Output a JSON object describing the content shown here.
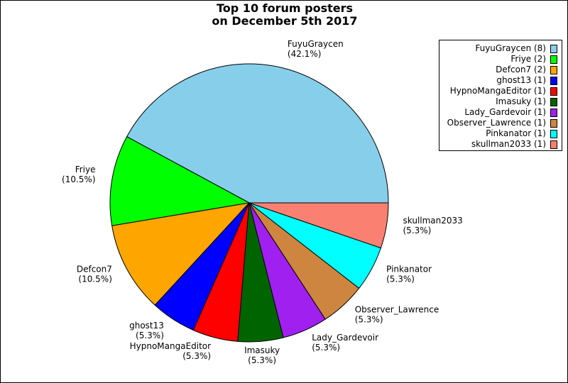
{
  "chart_data": {
    "type": "pie",
    "title": [
      "Top 10 forum posters",
      "on December 5th 2017"
    ],
    "legend_position": "top-right",
    "slices": [
      {
        "label": "FuyuGraycen",
        "value": 8,
        "percent": "42.1%",
        "legend": "FuyuGraycen (8)",
        "color": "#87ceeb"
      },
      {
        "label": "Friye",
        "value": 2,
        "percent": "10.5%",
        "legend": "Friye (2)",
        "color": "#00ff00"
      },
      {
        "label": "Defcon7",
        "value": 2,
        "percent": "10.5%",
        "legend": "Defcon7 (2)",
        "color": "#ffa500"
      },
      {
        "label": "ghost13",
        "value": 1,
        "percent": "5.3%",
        "legend": "ghost13 (1)",
        "color": "#0000ff"
      },
      {
        "label": "HypnoMangaEditor",
        "value": 1,
        "percent": "5.3%",
        "legend": "HypnoMangaEditor (1)",
        "color": "#ff0000"
      },
      {
        "label": "Imasuky",
        "value": 1,
        "percent": "5.3%",
        "legend": "Imasuky (1)",
        "color": "#006400"
      },
      {
        "label": "Lady_Gardevoir",
        "value": 1,
        "percent": "5.3%",
        "legend": "Lady_Gardevoir (1)",
        "color": "#a020f0"
      },
      {
        "label": "Observer_Lawrence",
        "value": 1,
        "percent": "5.3%",
        "legend": "Observer_Lawrence (1)",
        "color": "#cd853f"
      },
      {
        "label": "Pinkanator",
        "value": 1,
        "percent": "5.3%",
        "legend": "Pinkanator (1)",
        "color": "#00ffff"
      },
      {
        "label": "skullman2033",
        "value": 1,
        "percent": "5.3%",
        "legend": "skullman2033 (1)",
        "color": "#fa8072"
      }
    ]
  }
}
